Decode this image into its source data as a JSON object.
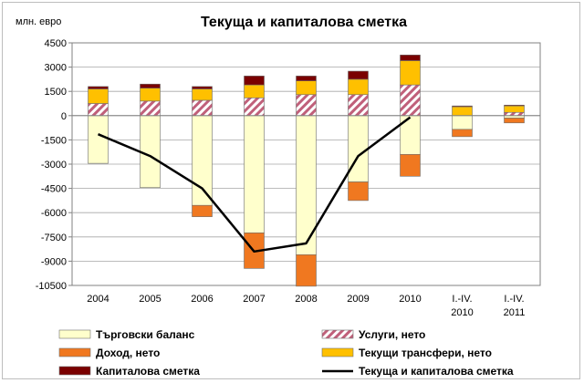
{
  "chart_data": {
    "type": "bar",
    "title": "Текуща и капиталова сметка",
    "unit_label": "млн. евро",
    "categories": [
      [
        "2004"
      ],
      [
        "2005"
      ],
      [
        "2006"
      ],
      [
        "2007"
      ],
      [
        "2008"
      ],
      [
        "2009"
      ],
      [
        "2010"
      ],
      [
        "I.-IV.",
        "2010"
      ],
      [
        "I.-IV.",
        "2011"
      ]
    ],
    "ylim": [
      -10500,
      4500
    ],
    "yticks": [
      4500,
      3000,
      1500,
      0,
      -1500,
      -3000,
      -4500,
      -6000,
      -7500,
      -9000,
      -10500
    ],
    "grid": true,
    "stacked": true,
    "series": [
      {
        "name": "Търговски баланс",
        "type": "bar",
        "color": "#ffffcc",
        "values": [
          -2950,
          -4450,
          -5550,
          -7250,
          -8600,
          -4100,
          -2400,
          -850,
          -150
        ]
      },
      {
        "name": "Услуги, нето",
        "type": "bar",
        "pattern": "hatch",
        "color": "#c0607a",
        "values": [
          750,
          900,
          950,
          1100,
          1300,
          1300,
          1900,
          0,
          200
        ]
      },
      {
        "name": "Доход, нето",
        "type": "bar",
        "color": "#f07820",
        "values": [
          0,
          0,
          -700,
          -2200,
          -1950,
          -1150,
          -1350,
          -450,
          -300
        ]
      },
      {
        "name": "Текущи трансфери, нето",
        "type": "bar",
        "color": "#ffc000",
        "values": [
          900,
          800,
          700,
          800,
          850,
          950,
          1500,
          550,
          400
        ]
      },
      {
        "name": "Капиталова сметка",
        "type": "bar",
        "color": "#7a0000",
        "values": [
          150,
          250,
          150,
          550,
          300,
          500,
          350,
          50,
          50
        ]
      },
      {
        "name": "Текуща и капиталова сметка",
        "type": "line",
        "color": "#000000",
        "values": [
          -1150,
          -2500,
          -4500,
          -8400,
          -7900,
          -2500,
          -100,
          null,
          null
        ]
      }
    ]
  }
}
